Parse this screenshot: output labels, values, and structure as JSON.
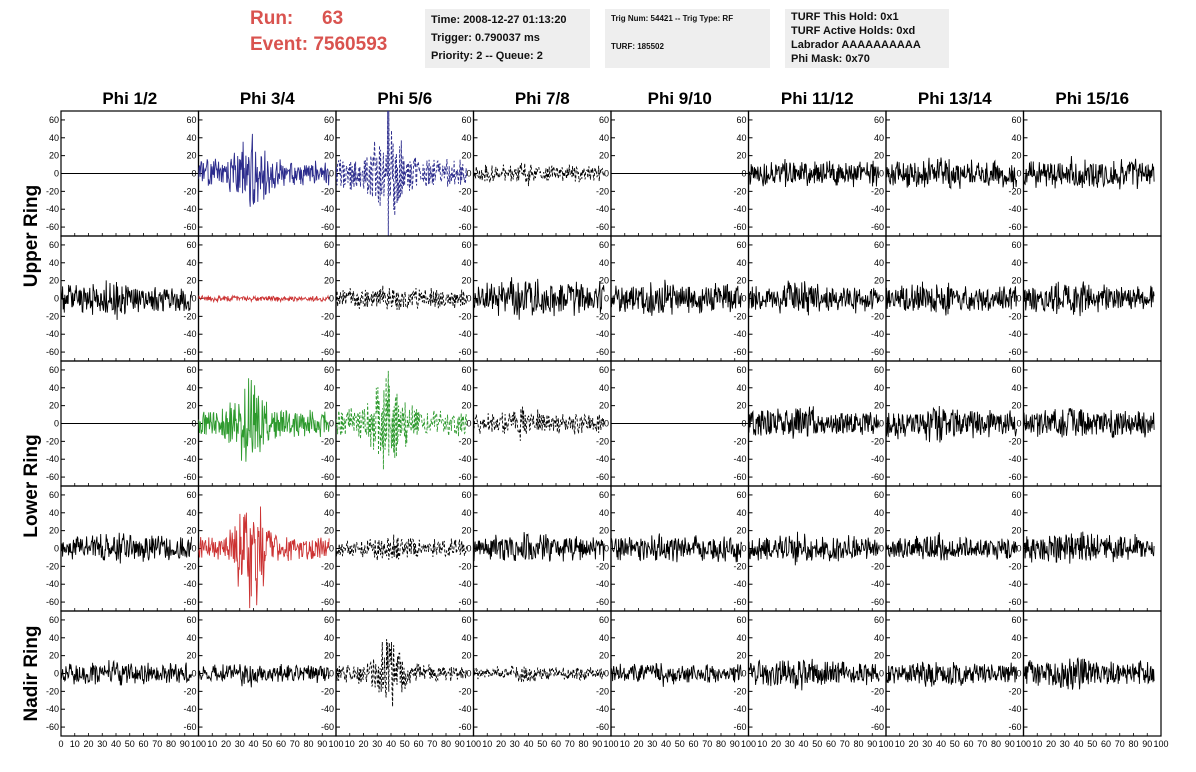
{
  "header": {
    "run_label": "Run:",
    "run_value": "63",
    "event_label": "Event:",
    "event_value": "7560593"
  },
  "info_box_1": {
    "time": "Time: 2008-12-27 01:13:20",
    "trigger": "Trigger: 0.790037 ms",
    "priority": "Priority: 2 -- Queue: 2"
  },
  "info_box_2": {
    "trig": "Trig Num: 54421 -- Trig Type: RF",
    "turf": "TURF: 185502"
  },
  "info_box_3": {
    "this_hold": "TURF This Hold: 0x1",
    "active_holds": "TURF Active Holds: 0xd",
    "labrador": "Labrador AAAAAAAAAA",
    "phi_mask": "Phi Mask: 0x70"
  },
  "chart_data": {
    "type": "line",
    "columns": [
      "Phi 1/2",
      "Phi 3/4",
      "Phi 5/6",
      "Phi 7/8",
      "Phi 9/10",
      "Phi 11/12",
      "Phi 13/14",
      "Phi 15/16"
    ],
    "ring_labels": [
      {
        "text": "Upper Ring",
        "rows": [
          0,
          1
        ]
      },
      {
        "text": "Lower Ring",
        "rows": [
          2,
          3
        ]
      },
      {
        "text": "Nadir Ring",
        "rows": [
          4,
          4
        ]
      }
    ],
    "xlim": [
      0,
      100
    ],
    "ylim": [
      -70,
      70
    ],
    "x_ticks": [
      0,
      10,
      20,
      30,
      40,
      50,
      60,
      70,
      80,
      90,
      100
    ],
    "x_tick_labels": [
      "0",
      "10",
      "20",
      "30",
      "40",
      "50",
      "60",
      "70",
      "80",
      "90",
      "100"
    ],
    "y_ticks": [
      -60,
      -40,
      -20,
      0,
      20,
      40,
      60
    ],
    "colors": {
      "black": "#000000",
      "blue": "#2b2b8c",
      "red": "#cc3333",
      "green": "#2e9a2e"
    },
    "panels": [
      [
        {
          "style": "flat",
          "color": "black",
          "amp": 0
        },
        {
          "style": "solid",
          "color": "blue",
          "amp": 14,
          "burst": 30,
          "seed": 11
        },
        {
          "style": "dashed",
          "color": "blue",
          "amp": 16,
          "burst": 42,
          "spike": 75,
          "seed": 12
        },
        {
          "style": "dashed",
          "color": "black",
          "amp": 9,
          "burst": 10,
          "seed": 13
        },
        {
          "style": "flat",
          "color": "black",
          "amp": 0
        },
        {
          "style": "solid",
          "color": "black",
          "amp": 13,
          "burst": 8,
          "seed": 14
        },
        {
          "style": "solid",
          "color": "black",
          "amp": 15,
          "burst": 8,
          "seed": 15
        },
        {
          "style": "solid",
          "color": "black",
          "amp": 15,
          "burst": 10,
          "seed": 16
        }
      ],
      [
        {
          "style": "solid",
          "color": "black",
          "amp": 16,
          "burst": 12,
          "seed": 21
        },
        {
          "style": "solid",
          "color": "red",
          "amp": 3,
          "burst": 0,
          "seed": 22
        },
        {
          "style": "dashed",
          "color": "black",
          "amp": 10,
          "burst": 12,
          "seed": 23
        },
        {
          "style": "solid",
          "color": "black",
          "amp": 18,
          "burst": 14,
          "seed": 24
        },
        {
          "style": "solid",
          "color": "black",
          "amp": 16,
          "burst": 12,
          "seed": 25
        },
        {
          "style": "solid",
          "color": "black",
          "amp": 14,
          "burst": 12,
          "seed": 26
        },
        {
          "style": "solid",
          "color": "black",
          "amp": 14,
          "burst": 12,
          "seed": 27
        },
        {
          "style": "solid",
          "color": "black",
          "amp": 15,
          "burst": 12,
          "seed": 28
        }
      ],
      [
        {
          "style": "flat",
          "color": "black",
          "amp": 0
        },
        {
          "style": "solid",
          "color": "green",
          "amp": 14,
          "burst": 36,
          "seed": 31
        },
        {
          "style": "dashed",
          "color": "green",
          "amp": 15,
          "burst": 40,
          "seed": 32
        },
        {
          "style": "dashed",
          "color": "black",
          "amp": 11,
          "burst": 16,
          "seed": 33
        },
        {
          "style": "flat",
          "color": "black",
          "amp": 0
        },
        {
          "style": "solid",
          "color": "black",
          "amp": 14,
          "burst": 12,
          "seed": 34
        },
        {
          "style": "solid",
          "color": "black",
          "amp": 15,
          "burst": 14,
          "seed": 35
        },
        {
          "style": "solid",
          "color": "black",
          "amp": 14,
          "burst": 12,
          "seed": 36
        }
      ],
      [
        {
          "style": "solid",
          "color": "black",
          "amp": 13,
          "burst": 10,
          "seed": 41
        },
        {
          "style": "solid",
          "color": "red",
          "amp": 12,
          "burst": 50,
          "seed": 42
        },
        {
          "style": "dashed",
          "color": "black",
          "amp": 10,
          "burst": 14,
          "seed": 43
        },
        {
          "style": "solid",
          "color": "black",
          "amp": 13,
          "burst": 10,
          "seed": 44
        },
        {
          "style": "solid",
          "color": "black",
          "amp": 13,
          "burst": 10,
          "seed": 45
        },
        {
          "style": "solid",
          "color": "black",
          "amp": 13,
          "burst": 10,
          "seed": 46
        },
        {
          "style": "solid",
          "color": "black",
          "amp": 12,
          "burst": 10,
          "seed": 47
        },
        {
          "style": "solid",
          "color": "black",
          "amp": 14,
          "burst": 12,
          "seed": 48
        }
      ],
      [
        {
          "style": "solid",
          "color": "black",
          "amp": 11,
          "burst": 10,
          "seed": 51
        },
        {
          "style": "solid",
          "color": "black",
          "amp": 9,
          "burst": 14,
          "seed": 52
        },
        {
          "style": "dashed",
          "color": "black",
          "amp": 9,
          "burst": 28,
          "seed": 53
        },
        {
          "style": "dashed",
          "color": "black",
          "amp": 7,
          "burst": 8,
          "seed": 54
        },
        {
          "style": "solid",
          "color": "black",
          "amp": 10,
          "burst": 8,
          "seed": 55
        },
        {
          "style": "solid",
          "color": "black",
          "amp": 13,
          "burst": 10,
          "seed": 56
        },
        {
          "style": "solid",
          "color": "black",
          "amp": 12,
          "burst": 12,
          "seed": 57
        },
        {
          "style": "solid",
          "color": "black",
          "amp": 13,
          "burst": 14,
          "seed": 58
        }
      ]
    ]
  }
}
